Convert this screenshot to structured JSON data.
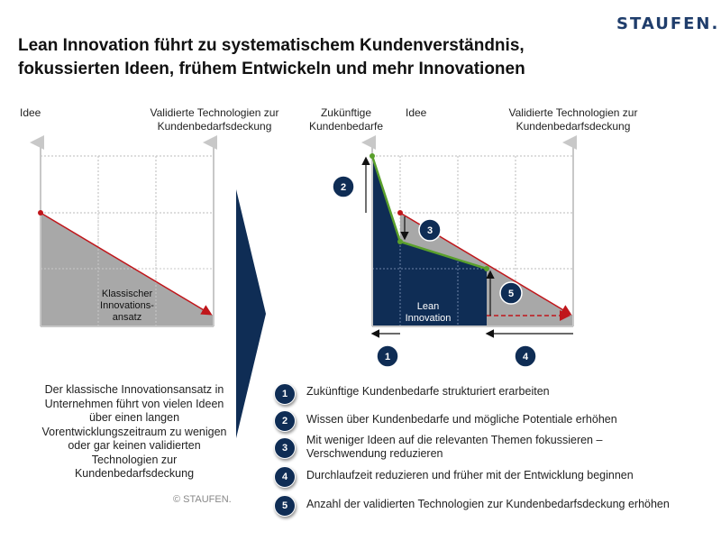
{
  "brand": {
    "logo": "STAUFEN."
  },
  "title": {
    "line1": "Lean Innovation führt zu systematischem Kundenverständnis,",
    "line2": "fokussierten Ideen, frühem Entwickeln und mehr Innovationen"
  },
  "left_chart": {
    "y_label": "Idee",
    "x_label_line1": "Validierte Technologien zur",
    "x_label_line2": "Kundenbedarfsdeckung",
    "area_label_line1": "Klassischer",
    "area_label_line2": "Innovations-",
    "area_label_line3": "ansatz"
  },
  "right_chart": {
    "future_label_line1": "Zukünftige",
    "future_label_line2": "Kundenbedarfe",
    "y_label": "Idee",
    "x_label_line1": "Validierte Technologien zur",
    "x_label_line2": "Kundenbedarfsdeckung",
    "area_label_line1": "Lean",
    "area_label_line2": "Innovation",
    "markers": [
      "2",
      "3",
      "5",
      "1",
      "4"
    ]
  },
  "description": "Der klassische Innovationsansatz in Unternehmen führt von vielen Ideen über einen langen Vorentwicklungszeitraum zu wenigen oder gar keinen validierten Technologien zur Kundenbedarfsdeckung",
  "copyright": "© STAUFEN.",
  "legend": [
    {
      "num": "1",
      "text": "Zukünftige Kundenbedarfe strukturiert erarbeiten"
    },
    {
      "num": "2",
      "text": "Wissen über Kundenbedarfe und mögliche Potentiale erhöhen"
    },
    {
      "num": "3",
      "text": "Mit weniger Ideen auf die relevanten Themen fokussieren – Verschwendung reduzieren"
    },
    {
      "num": "4",
      "text": "Durchlaufzeit reduzieren und früher mit der Entwicklung beginnen"
    },
    {
      "num": "5",
      "text": "Anzahl der validierten Technologien zur Kundenbedarfsdeckung erhöhen"
    }
  ],
  "colors": {
    "navy": "#0f2d55",
    "red": "#c0161b",
    "green": "#5aa02c",
    "grey": "#a8a8a8",
    "brand": "#1f3d6b"
  }
}
